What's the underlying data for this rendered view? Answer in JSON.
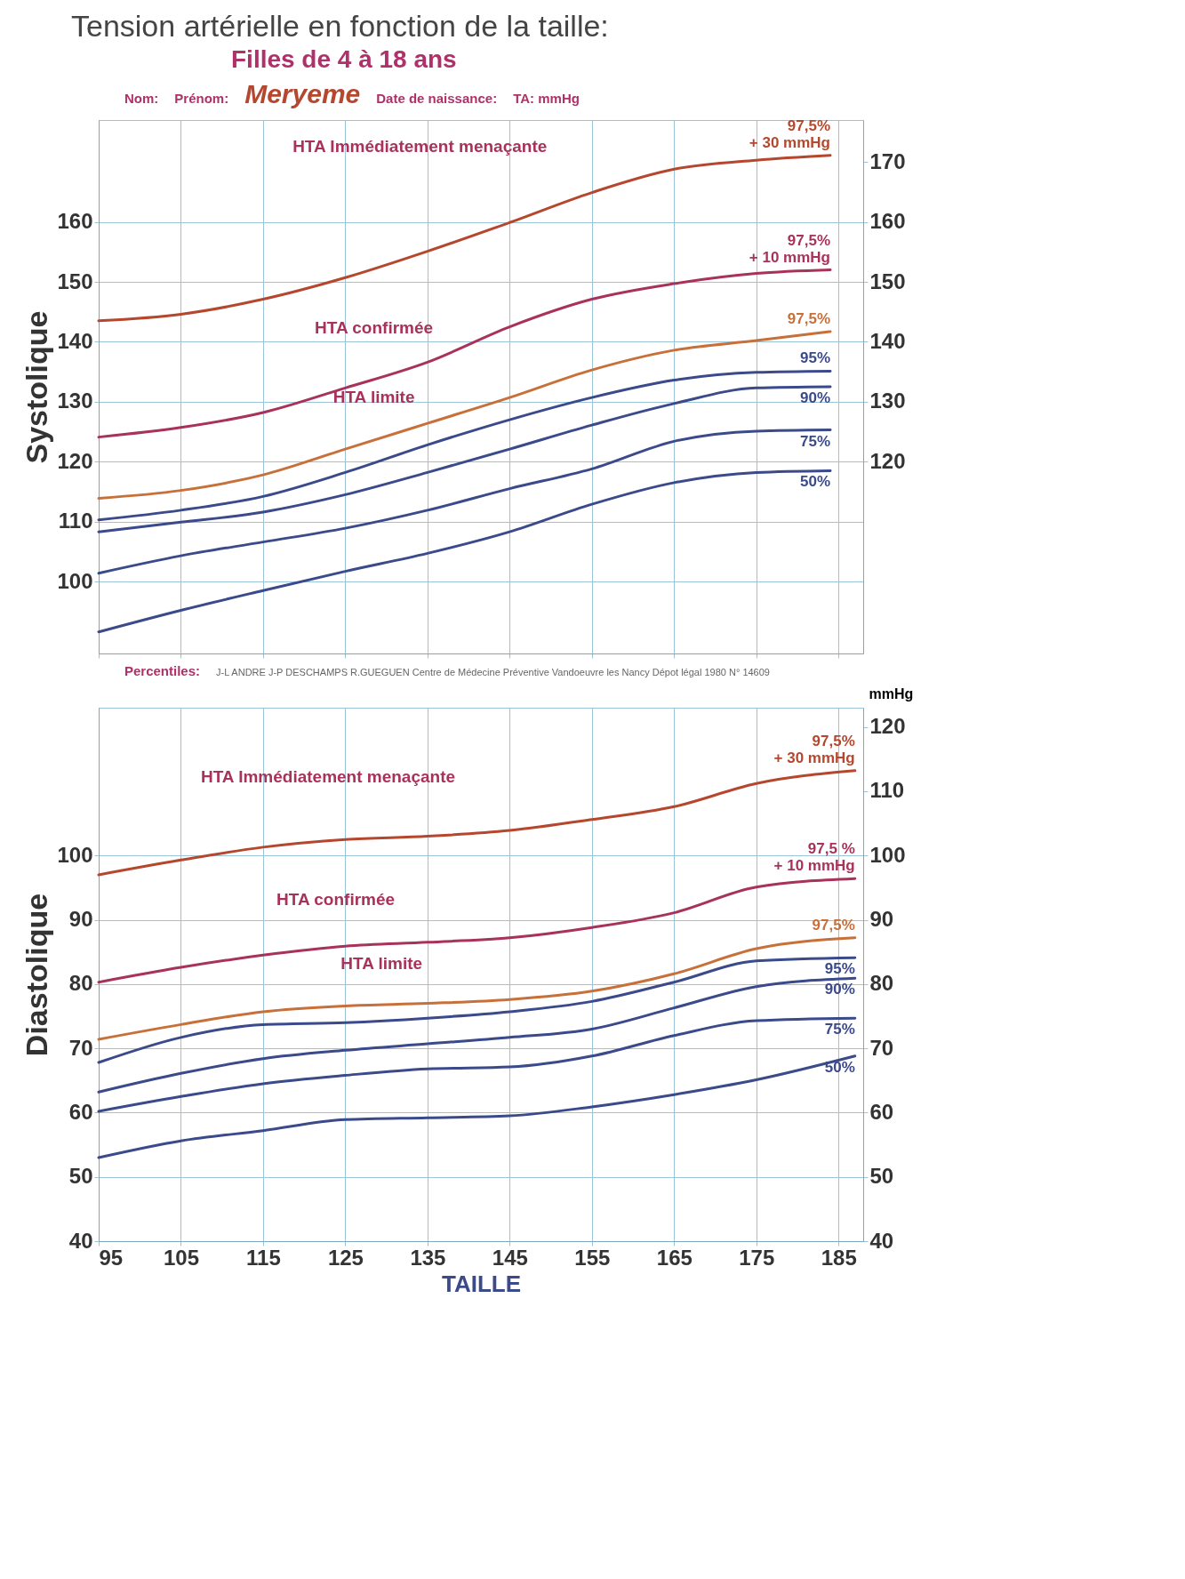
{
  "chart_data": [
    {
      "type": "line",
      "title": "Tension artérielle en fonction de la taille:",
      "subtitle": "Filles de 4 à 18 ans",
      "ylabel": "Systolique",
      "tick_labels": "y",
      "grid": true,
      "xlim": [
        95,
        188
      ],
      "xticks": [
        95,
        105,
        115,
        125,
        135,
        145,
        155,
        165,
        175,
        185
      ],
      "ylim": [
        88,
        177
      ],
      "yticks": [
        100,
        110,
        120,
        130,
        140,
        150,
        160
      ],
      "y2lim": [
        88,
        177
      ],
      "y2ticks": [
        120,
        130,
        140,
        150,
        160,
        170
      ],
      "x": [
        95,
        105,
        115,
        125,
        135,
        145,
        155,
        165,
        175,
        184
      ],
      "annotations": [
        "Nom:",
        "Prénom:",
        "Meryeme",
        "Date de naissance:",
        "TA: mmHg",
        "HTA Immédiatement menaçante",
        "HTA confirmée",
        "HTA limite"
      ],
      "series": [
        {
          "name": "97,5% + 30 mmHg",
          "color": "#b5472e",
          "values": [
            143.5,
            144.6,
            147.1,
            150.7,
            155.1,
            159.9,
            164.9,
            168.8,
            170.3,
            171.1
          ]
        },
        {
          "name": "97,5% + 10 mmHg",
          "color": "#a8325a",
          "values": [
            124.1,
            125.7,
            128.2,
            132.3,
            136.6,
            142.5,
            147.1,
            149.7,
            151.4,
            152.0
          ]
        },
        {
          "name": "97,5%",
          "color": "#c8703a",
          "values": [
            113.9,
            115.2,
            117.8,
            122.1,
            126.4,
            130.7,
            135.3,
            138.6,
            140.2,
            141.7
          ]
        },
        {
          "name": "95%",
          "color": "#3a4a8a",
          "values": [
            110.3,
            111.9,
            114.2,
            118.2,
            122.8,
            127.0,
            130.7,
            133.6,
            134.9,
            135.1
          ]
        },
        {
          "name": "90%",
          "color": "#3a4a8a",
          "values": [
            108.3,
            109.9,
            111.6,
            114.5,
            118.2,
            122.1,
            126.1,
            129.7,
            132.3,
            132.5
          ]
        },
        {
          "name": "75%",
          "color": "#3a4a8a",
          "values": [
            101.4,
            104.3,
            106.6,
            108.9,
            111.9,
            115.5,
            118.8,
            123.4,
            125.1,
            125.3
          ]
        },
        {
          "name": "50%",
          "color": "#3a4a8a",
          "values": [
            91.6,
            95.2,
            98.5,
            101.7,
            104.7,
            108.3,
            112.9,
            116.5,
            118.2,
            118.5
          ]
        }
      ]
    },
    {
      "type": "line",
      "ylabel": "Diastolique",
      "xlabel": "TAILLE",
      "y2label": "mmHg",
      "grid": true,
      "xlim": [
        95,
        188
      ],
      "xticks": [
        95,
        105,
        115,
        125,
        135,
        145,
        155,
        165,
        175,
        185
      ],
      "ylim": [
        40,
        123
      ],
      "yticks": [
        40,
        50,
        60,
        70,
        80,
        90,
        100
      ],
      "y2lim": [
        40,
        123
      ],
      "y2ticks": [
        40,
        50,
        60,
        70,
        80,
        90,
        100,
        110,
        120
      ],
      "x": [
        95,
        105,
        115,
        125,
        135,
        145,
        155,
        165,
        175,
        187
      ],
      "annotations": [
        "Percentiles:",
        "J-L ANDRE J-P DESCHAMPS R.GUEGUEN Centre de Médecine Préventive Vandoeuvre les Nancy  Dépot légal 1980 N° 14609",
        "HTA Immédiatement menaçante",
        "HTA confirmée",
        "HTA limite"
      ],
      "series": [
        {
          "name": "97,5% + 30 mmHg",
          "color": "#b5472e",
          "values": [
            97.0,
            99.3,
            101.3,
            102.5,
            103.0,
            103.9,
            105.6,
            107.6,
            111.2,
            113.2
          ]
        },
        {
          "name": "97,5 % + 10 mmHg",
          "color": "#a8325a",
          "values": [
            80.3,
            82.6,
            84.5,
            85.9,
            86.5,
            87.2,
            88.8,
            91.1,
            95.1,
            96.4
          ]
        },
        {
          "name": "97,5%",
          "color": "#c8703a",
          "values": [
            71.4,
            73.7,
            75.7,
            76.6,
            77.0,
            77.6,
            78.9,
            81.6,
            85.5,
            87.2
          ]
        },
        {
          "name": "95%",
          "color": "#3a4a8a",
          "values": [
            67.8,
            71.7,
            73.7,
            74.0,
            74.7,
            75.7,
            77.3,
            80.3,
            83.6,
            84.1
          ]
        },
        {
          "name": "90%",
          "color": "#3a4a8a",
          "values": [
            63.2,
            66.1,
            68.4,
            69.7,
            70.7,
            71.7,
            73.0,
            76.3,
            79.6,
            80.9
          ]
        },
        {
          "name": "75%",
          "color": "#3a4a8a",
          "values": [
            60.2,
            62.5,
            64.5,
            65.8,
            66.8,
            67.1,
            68.8,
            72.0,
            74.3,
            74.7
          ]
        },
        {
          "name": "50%",
          "color": "#3a4a8a",
          "values": [
            53.0,
            55.6,
            57.2,
            58.9,
            59.2,
            59.5,
            60.9,
            62.8,
            65.1,
            68.8
          ]
        }
      ]
    }
  ]
}
